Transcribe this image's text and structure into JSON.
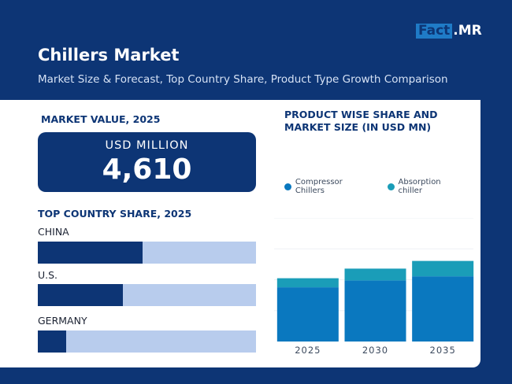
{
  "logo": {
    "boxed": "Fact",
    "rest": ".MR"
  },
  "header": {
    "title": "Chillers Market",
    "subtitle": "Market Size & Forecast, Top Country Share, Product Type Growth Comparison"
  },
  "market_value": {
    "heading": "MARKET VALUE, 2025",
    "unit": "USD MILLION",
    "value": "4,610"
  },
  "country_share": {
    "heading": "TOP COUNTRY SHARE, 2025",
    "countries": [
      {
        "name": "CHINA",
        "share": 0.48
      },
      {
        "name": "U.S.",
        "share": 0.39
      },
      {
        "name": "GERMANY",
        "share": 0.13
      }
    ]
  },
  "product_chart": {
    "heading": "PRODUCT WISE SHARE AND MARKET SIZE (IN USD MN)"
  },
  "colors": {
    "navy": "#0d3575",
    "compressor": "#0a78bf",
    "absorption": "#1a9db8",
    "track": "#b8cced"
  },
  "chart_data": {
    "type": "bar",
    "stacked": true,
    "categories": [
      "2025",
      "2030",
      "2035"
    ],
    "series": [
      {
        "name": "Compressor Chillers",
        "values": [
          3950,
          4450,
          4750
        ]
      },
      {
        "name": "Absorption chiller",
        "values": [
          660,
          860,
          1120
        ]
      }
    ],
    "ylim": [
      0,
      9000
    ],
    "legend": "top-left",
    "grid": true
  }
}
